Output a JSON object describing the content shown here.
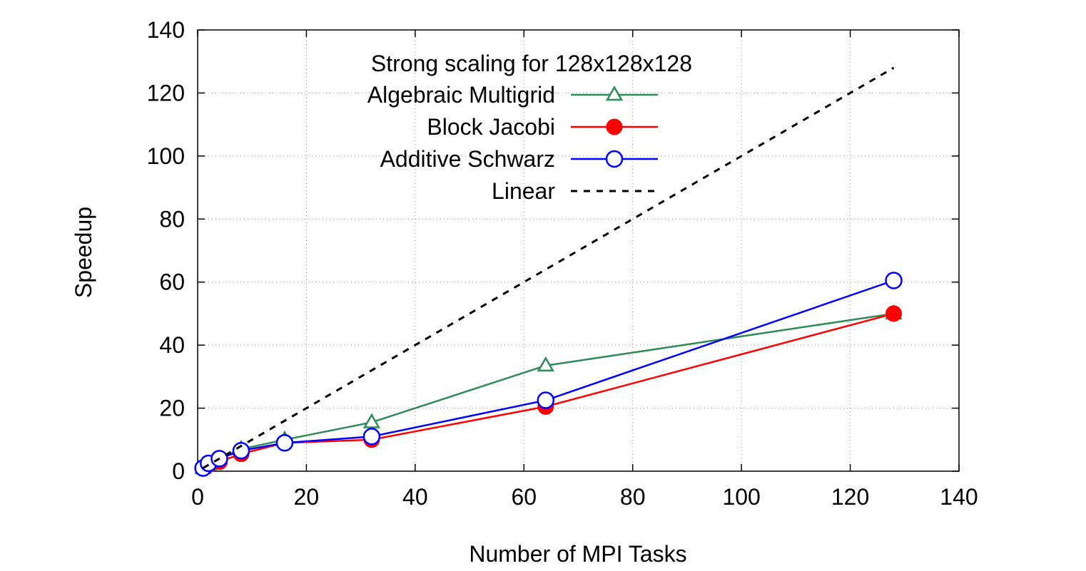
{
  "chart_data": {
    "type": "line",
    "title": "Strong scaling for 128x128x128",
    "xlabel": "Number of MPI Tasks",
    "ylabel": "Speedup",
    "xlim": [
      0,
      140
    ],
    "ylim": [
      0,
      140
    ],
    "xticks": [
      0,
      20,
      40,
      60,
      80,
      100,
      120,
      140
    ],
    "yticks": [
      0,
      20,
      40,
      60,
      80,
      100,
      120,
      140
    ],
    "grid": true,
    "legend_position": "top-left",
    "series": [
      {
        "name": "Algebraic Multigrid",
        "color": "#2e8b57",
        "marker": "open-triangle",
        "x": [
          1,
          2,
          4,
          8,
          16,
          32,
          64,
          128
        ],
        "y": [
          1.0,
          2.0,
          4.0,
          7.0,
          10.0,
          15.5,
          33.5,
          50.0
        ]
      },
      {
        "name": "Block Jacobi",
        "color": "#ff0000",
        "marker": "filled-circle",
        "x": [
          1,
          2,
          4,
          8,
          16,
          32,
          64,
          128
        ],
        "y": [
          1.0,
          2.0,
          3.0,
          5.5,
          9.0,
          10.0,
          20.5,
          50.0
        ]
      },
      {
        "name": "Additive Schwarz",
        "color": "#0000ff",
        "marker": "open-circle",
        "x": [
          1,
          2,
          4,
          8,
          16,
          32,
          64,
          128
        ],
        "y": [
          1.0,
          2.5,
          4.0,
          6.5,
          9.0,
          11.0,
          22.5,
          60.5
        ]
      },
      {
        "name": "Linear",
        "color": "#000000",
        "marker": "none",
        "dashed": true,
        "x": [
          1,
          128
        ],
        "y": [
          1,
          128
        ]
      }
    ]
  }
}
